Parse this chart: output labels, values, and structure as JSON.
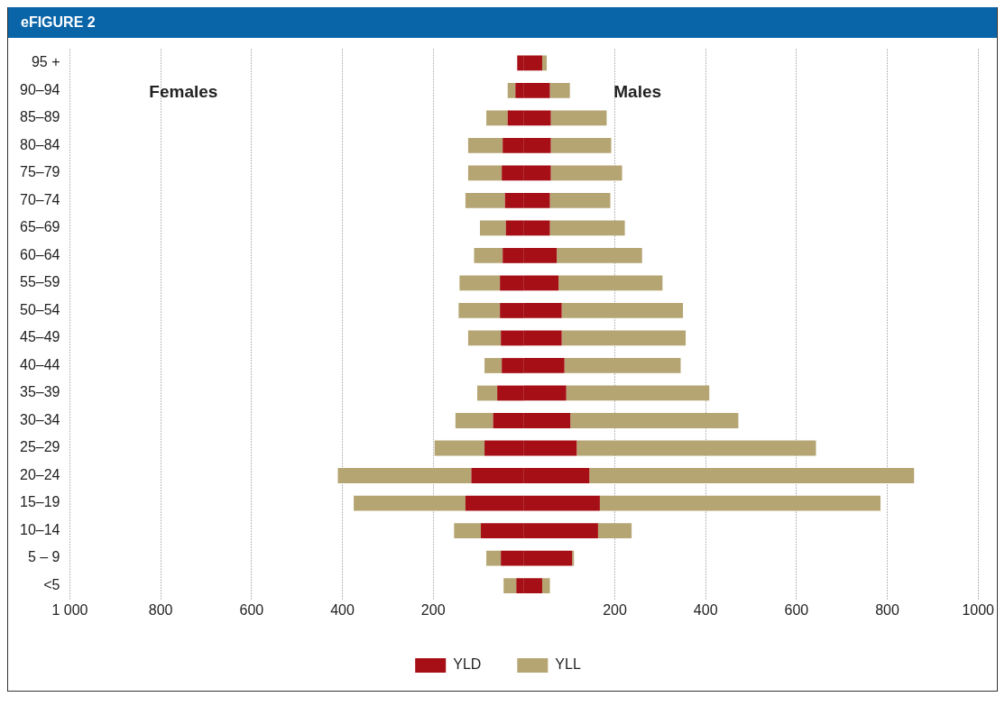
{
  "chart_data": {
    "type": "bar",
    "title": "eFIGURE 2",
    "orientation": "horizontal",
    "stacked": true,
    "categories": [
      "95 +",
      "90–94",
      "85–89",
      "80–84",
      "75–79",
      "70–74",
      "65–69",
      "60–64",
      "55–59",
      "50–54",
      "45–49",
      "40–44",
      "35–39",
      "30–34",
      "25–29",
      "20–24",
      "15–19",
      "10–14",
      "5 – 9",
      "<5"
    ],
    "series": [
      {
        "color": "#a50f15",
        "values": [
          -15,
          -19,
          -36,
          -47,
          -49,
          -42,
          -40,
          -47,
          -53,
          -53,
          -51,
          -49,
          -59,
          -68,
          -87,
          -116,
          -129,
          -95,
          -51,
          -17
        ]
      },
      {
        "color": "#b5a572",
        "values": [
          0,
          -17,
          -47,
          -76,
          -74,
          -87,
          -57,
          -63,
          -89,
          -91,
          -72,
          -38,
          -44,
          -83,
          -110,
          -294,
          -246,
          -59,
          -32,
          -28
        ]
      },
      {
        "name": "YLD",
        "color": "#a50f15",
        "values": [
          40,
          57,
          59,
          59,
          59,
          57,
          57,
          72,
          76,
          83,
          83,
          89,
          93,
          102,
          116,
          144,
          167,
          163,
          106,
          40
        ]
      },
      {
        "name": "YLL",
        "color": "#b5a572",
        "values": [
          10,
          44,
          123,
          133,
          157,
          133,
          165,
          188,
          229,
          267,
          273,
          256,
          315,
          370,
          527,
          715,
          618,
          74,
          4,
          17
        ]
      }
    ],
    "xlim": [
      -1000,
      1000
    ],
    "xticks": [
      {
        "value": -1000,
        "label": "1 000"
      },
      {
        "value": -800,
        "label": "800"
      },
      {
        "value": -600,
        "label": "600"
      },
      {
        "value": -400,
        "label": "400"
      },
      {
        "value": -200,
        "label": "200"
      },
      200,
      400,
      600,
      800,
      1000
    ],
    "annotations": [
      "Females",
      "Males"
    ],
    "grid": "x",
    "legend": "bottom"
  }
}
